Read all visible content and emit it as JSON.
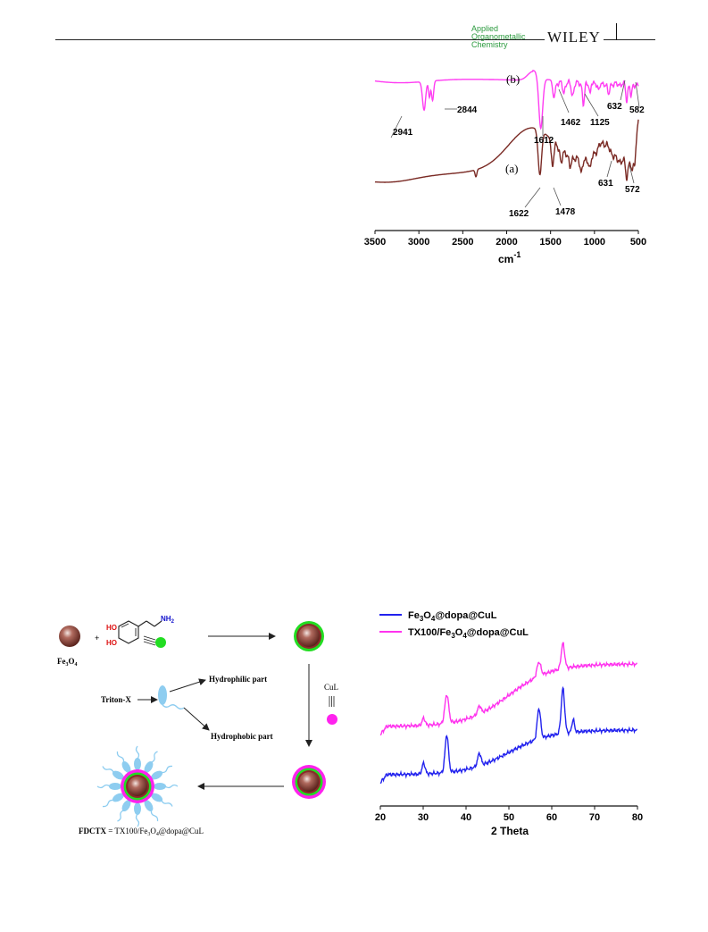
{
  "header": {
    "journal_line1": "Applied",
    "journal_line2": "Organometallic",
    "journal_line3": "Chemistry",
    "publisher": "WILEY"
  },
  "ftir": {
    "chart_data": {
      "type": "line",
      "xlabel": "cm",
      "xlabel_sup": "-1",
      "xlim": [
        3500,
        500
      ],
      "x_ticks": [
        3500,
        3000,
        2500,
        2000,
        1500,
        1000,
        500
      ],
      "series": [
        {
          "name": "(b)",
          "color": "#ff3df2",
          "peaks": [
            "2941",
            "2844",
            "1612",
            "1462",
            "1125",
            "632",
            "582"
          ]
        },
        {
          "name": "(a)",
          "color": "#7a2a24",
          "peaks": [
            "1622",
            "1478",
            "631",
            "572"
          ]
        }
      ]
    }
  },
  "scheme": {
    "fe3o4_label": "Fe3O4",
    "plus": "+",
    "ho_top": "HO",
    "ho_bottom": "HO",
    "nh2": "NH2",
    "triton": "Triton-X",
    "hydrophilic": "Hydrophilic part",
    "hydrophobic": "Hydrophobic part",
    "cul": "CuL",
    "fdctx": "FDCTX",
    "fdctx_eq": " = TX100/Fe3O4@dopa@CuL",
    "colors": {
      "core": "#8a4a40",
      "dopa_shell": "#22dd22",
      "cul_shell": "#ff22ee",
      "surfactant": "#8ecdf0"
    }
  },
  "xrd": {
    "chart_data": {
      "type": "line",
      "xlabel": "2 Theta",
      "xlim": [
        20,
        80
      ],
      "x_ticks": [
        20,
        30,
        40,
        50,
        60,
        70,
        80
      ],
      "series": [
        {
          "name": "Fe3O4@dopa@CuL",
          "color": "#2222ee",
          "peaks_2theta": [
            30.1,
            35.5,
            43.1,
            57.0,
            62.6,
            65.0
          ]
        },
        {
          "name": "TX100/Fe3O4@dopa@CuL",
          "color": "#ff33ee",
          "peaks_2theta": [
            30.1,
            35.5,
            43.1,
            57.0,
            62.6
          ]
        }
      ]
    }
  }
}
